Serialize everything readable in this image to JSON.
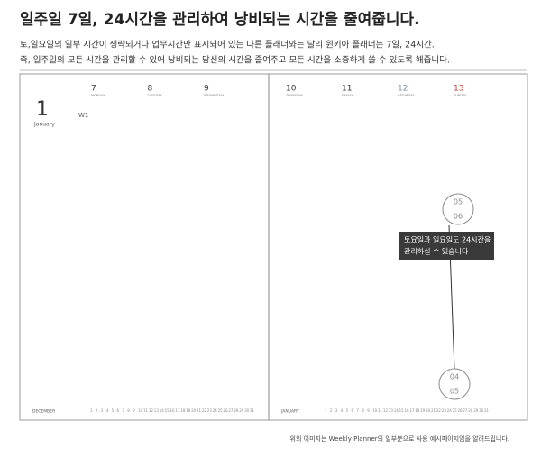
{
  "header": {
    "title": "일주일 7일, 24시간을 관리하여 낭비되는 시간을 줄여줍니다.",
    "description": [
      "토,일요일의 일부 시간이 생략되거나 업무시간만 표시되어 있는 다른 플래너와는 달리 윈키아 플래너는 7일, 24시간.",
      "즉, 일주일의 모든 시간을 관리할 수 있어 낭비되는 당신의 시간을 줄여주고 모든 시간을 소중하게 쓸 수 있도록 해줍니다."
    ]
  },
  "planner": {
    "left": {
      "month_number": "1",
      "month_name": "January",
      "week": "W1",
      "days": [
        {
          "number": "7",
          "name": "MONDAY"
        },
        {
          "number": "8",
          "name": "TUESDAY"
        },
        {
          "number": "9",
          "name": "WEDNESDAY"
        }
      ],
      "footer_month": "DECEMBER"
    },
    "right": {
      "days": [
        {
          "number": "10",
          "name": "THURSDAY"
        },
        {
          "number": "11",
          "name": "FRIDAY"
        },
        {
          "number": "12",
          "name": "SATURDAY"
        },
        {
          "number": "13",
          "name": "SUNDAY"
        }
      ],
      "footer_month": "JANUARY"
    },
    "mini_calendar": [
      "1",
      "2",
      "3",
      "4",
      "5",
      "6",
      "7",
      "8",
      "9",
      "10",
      "11",
      "12",
      "13",
      "14",
      "15",
      "16",
      "17",
      "18",
      "19",
      "20",
      "21",
      "22",
      "23",
      "24",
      "25",
      "26",
      "27",
      "28",
      "29",
      "30",
      "31"
    ]
  },
  "callout": {
    "top_hours": [
      "05",
      "06"
    ],
    "text": [
      "토요일과 일요일도 24시간을",
      "관리하실 수 있습니다"
    ],
    "bottom_hours": [
      "04",
      "05"
    ]
  },
  "caption": "위의 이미지는 Weekly Planner의 일부분으로 사용 예시페이지임을 알려드립니다."
}
